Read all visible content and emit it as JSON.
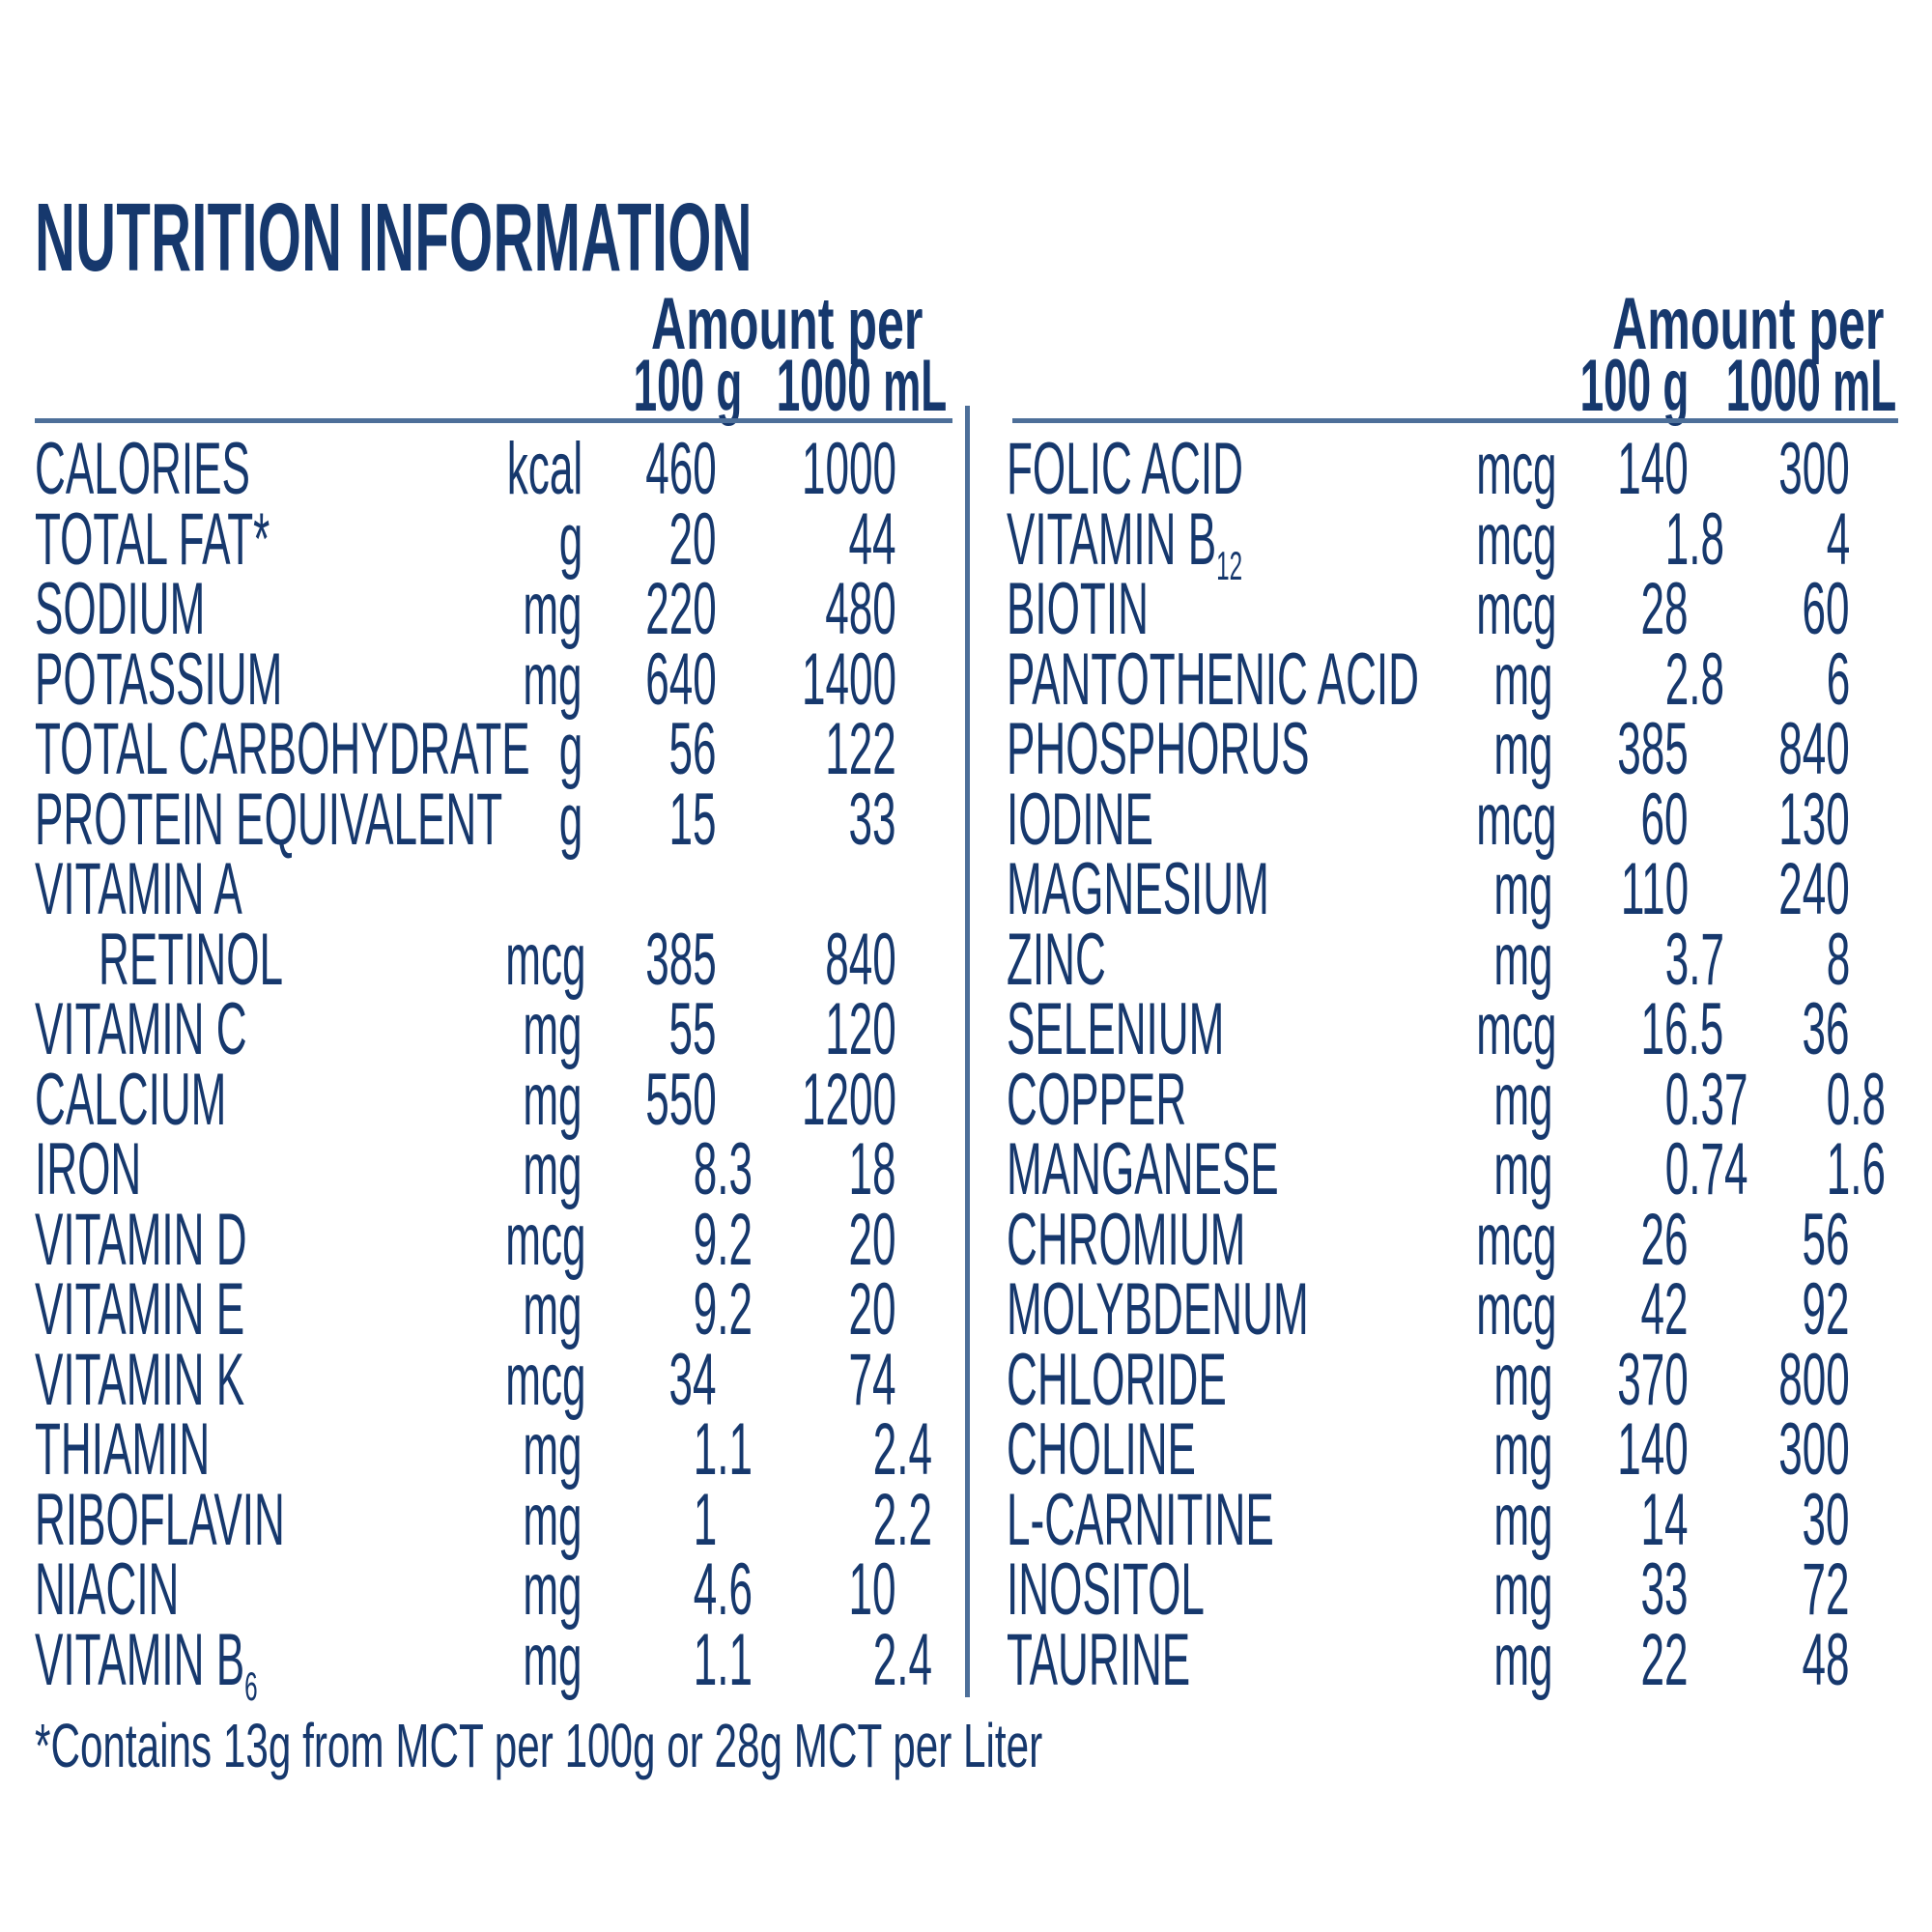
{
  "title": "NUTRITION INFORMATION",
  "footnote": "*Contains 13g from MCT per 100g or 28g MCT per Liter",
  "colors": {
    "text": "#16386d",
    "rule": "#4d6f99"
  },
  "tables": [
    {
      "header": {
        "amount_per": "Amount per",
        "col_100g": "100 g",
        "col_1000ml": "1000 mL"
      },
      "rows": [
        {
          "label": "CALORIES",
          "unit": "kcal",
          "v100": "460",
          "v1000": "1000"
        },
        {
          "label": "TOTAL FAT*",
          "unit": "g",
          "v100": "20",
          "v1000": "44"
        },
        {
          "label": "SODIUM",
          "unit": "mg",
          "v100": "220",
          "v1000": "480"
        },
        {
          "label": "POTASSIUM",
          "unit": "mg",
          "v100": "640",
          "v1000": "1400"
        },
        {
          "label": "TOTAL CARBOHYDRATE",
          "unit": "g",
          "v100": "56",
          "v1000": "122"
        },
        {
          "label": "PROTEIN EQUIVALENT",
          "unit": "g",
          "v100": "15",
          "v1000": "33"
        },
        {
          "label": "VITAMIN A",
          "unit": "",
          "v100": "",
          "v1000": ""
        },
        {
          "label": "RETINOL",
          "indent": true,
          "unit": "mcg",
          "v100": "385",
          "v1000": "840"
        },
        {
          "label": "VITAMIN C",
          "unit": "mg",
          "v100": "55",
          "v1000": "120"
        },
        {
          "label": "CALCIUM",
          "unit": "mg",
          "v100": "550",
          "v1000": "1200"
        },
        {
          "label": "IRON",
          "unit": "mg",
          "v100": "8.3",
          "v1000": "18"
        },
        {
          "label": "VITAMIN D",
          "unit": "mcg",
          "v100": "9.2",
          "v1000": "20"
        },
        {
          "label": "VITAMIN E",
          "unit": "mg",
          "v100": "9.2",
          "v1000": "20"
        },
        {
          "label": "VITAMIN K",
          "unit": "mcg",
          "v100": "34",
          "v1000": "74"
        },
        {
          "label": "THIAMIN",
          "unit": "mg",
          "v100": "1.1",
          "v1000": "2.4"
        },
        {
          "label": "RIBOFLAVIN",
          "unit": "mg",
          "v100": "1",
          "v1000": "2.2"
        },
        {
          "label": "NIACIN",
          "unit": "mg",
          "v100": "4.6",
          "v1000": "10"
        },
        {
          "label": "VITAMIN B",
          "sub": "6",
          "unit": "mg",
          "v100": "1.1",
          "v1000": "2.4"
        }
      ]
    },
    {
      "header": {
        "amount_per": "Amount per",
        "col_100g": "100 g",
        "col_1000ml": "1000 mL"
      },
      "rows": [
        {
          "label": "FOLIC ACID",
          "unit": "mcg",
          "v100": "140",
          "v1000": "300"
        },
        {
          "label": "VITAMIN B",
          "sub": "12",
          "unit": "mcg",
          "v100": "1.8",
          "v1000": "4"
        },
        {
          "label": "BIOTIN",
          "unit": "mcg",
          "v100": "28",
          "v1000": "60"
        },
        {
          "label": "PANTOTHENIC ACID",
          "unit": "mg",
          "v100": "2.8",
          "v1000": "6"
        },
        {
          "label": "PHOSPHORUS",
          "unit": "mg",
          "v100": "385",
          "v1000": "840"
        },
        {
          "label": "IODINE",
          "unit": "mcg",
          "v100": "60",
          "v1000": "130"
        },
        {
          "label": "MAGNESIUM",
          "unit": "mg",
          "v100": "110",
          "v1000": "240"
        },
        {
          "label": "ZINC",
          "unit": "mg",
          "v100": "3.7",
          "v1000": "8"
        },
        {
          "label": "SELENIUM",
          "unit": "mcg",
          "v100": "16.5",
          "v1000": "36"
        },
        {
          "label": "COPPER",
          "unit": "mg",
          "v100": "0.37",
          "v1000": "0.8"
        },
        {
          "label": "MANGANESE",
          "unit": "mg",
          "v100": "0.74",
          "v1000": "1.6"
        },
        {
          "label": "CHROMIUM",
          "unit": "mcg",
          "v100": "26",
          "v1000": "56"
        },
        {
          "label": "MOLYBDENUM",
          "unit": "mcg",
          "v100": "42",
          "v1000": "92"
        },
        {
          "label": "CHLORIDE",
          "unit": "mg",
          "v100": "370",
          "v1000": "800"
        },
        {
          "label": "CHOLINE",
          "unit": "mg",
          "v100": "140",
          "v1000": "300"
        },
        {
          "label": "L-CARNITINE",
          "unit": "mg",
          "v100": "14",
          "v1000": "30"
        },
        {
          "label": "INOSITOL",
          "unit": "mg",
          "v100": "33",
          "v1000": "72"
        },
        {
          "label": "TAURINE",
          "unit": "mg",
          "v100": "22",
          "v1000": "48"
        }
      ]
    }
  ]
}
